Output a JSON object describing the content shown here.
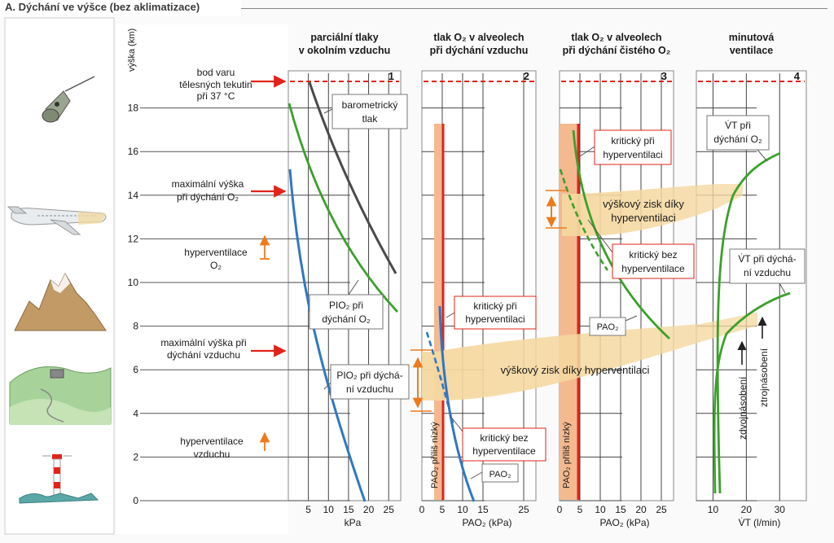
{
  "title": "A. Dýchání ve výšce (bez aklimatizace)",
  "y_axis_label": "výška (km)",
  "y_ticks": [
    0,
    2,
    4,
    6,
    8,
    10,
    12,
    14,
    16,
    18
  ],
  "left_labels": {
    "boiling_1": "bod varu",
    "boiling_2": "tělesných tekutin",
    "boiling_3": "při 37 °C",
    "maxo2_1": "maximální výška",
    "maxo2_2": "při dýchání O₂",
    "hypero2_1": "hyperventilace",
    "hypero2_2": "O₂",
    "maxair_1": "maximální výška při",
    "maxair_2": "dýchání vzduchu",
    "hyperair_1": "hyperventilace",
    "hyperair_2": "vzduchu"
  },
  "panels": [
    {
      "num": "1",
      "header_1": "parciální tlaky",
      "header_2": "v okolním vzduchu",
      "x_ticks": [
        "5",
        "10",
        "15",
        "20",
        "25"
      ],
      "x_label": "kPa"
    },
    {
      "num": "2",
      "header_1": "tlak O₂ v alveolech",
      "header_2": "při dýchání vzduchu",
      "x_ticks": [
        "0",
        "5",
        "10",
        "15",
        "25"
      ],
      "x_label": "PAO₂ (kPa)"
    },
    {
      "num": "3",
      "header_1": "tlak O₂ v alveolech",
      "header_2": "při dýchání čistého O₂",
      "x_ticks": [
        "0",
        "5",
        "10",
        "15",
        "20",
        "25"
      ],
      "x_label": "PAO₂ (kPa)"
    },
    {
      "num": "4",
      "header_1": "minutová",
      "header_2": "ventilace",
      "x_ticks": [
        "10",
        "20",
        "30"
      ],
      "x_label": "V̇T (l/min)"
    }
  ],
  "callouts": {
    "barometric_1": "barometrický",
    "barometric_2": "tlak",
    "pio2_o2_1": "PIO₂ při",
    "pio2_o2_2": "dýchání O₂",
    "pio2_air_1": "PIO₂ při dýchá-",
    "pio2_air_2": "ní vzduchu",
    "p2_crit_hyper_1": "kritický při",
    "p2_crit_hyper_2": "hyperventilaci",
    "p2_crit_nohyper_1": "kritický bez",
    "p2_crit_nohyper_2": "hyperventilace",
    "p2_pao2": "PAO₂",
    "p2_too_low": "PAO₂ příliš nízký",
    "gain_air": "výškový zisk díky hyperventilaci",
    "p3_crit_hyper_1": "kritický při",
    "p3_crit_hyper_2": "hyperventilaci",
    "p3_crit_nohyper_1": "kritický bez",
    "p3_crit_nohyper_2": "hyperventilace",
    "p3_pao2": "PAO₂",
    "p3_too_low": "PAO₂ příliš nízký",
    "gain_o2_1": "výškový zisk díky",
    "gain_o2_2": "hyperventilaci",
    "vt_o2_1": "V̇T při",
    "vt_o2_2": "dýchání O₂",
    "vt_air_1": "V̇T při dýchá-",
    "vt_air_2": "ní vzduchu",
    "double": "zdvojnásobení",
    "triple": "ztrojnásobení"
  },
  "colors": {
    "barometric": "#4a4a4a",
    "o2": "#3aa12a",
    "air": "#2f78c4",
    "boiling": "#e2231a",
    "arrow_red": "#e2231a",
    "arrow_orange": "#ee7a1c",
    "too_low_fill": "#f4b98f",
    "gain_fill": "#f5d8a0"
  },
  "icons": [
    "space-capsule-icon",
    "airplane-icon",
    "mountain-icon",
    "hill-landscape-icon",
    "lighthouse-icon"
  ]
}
